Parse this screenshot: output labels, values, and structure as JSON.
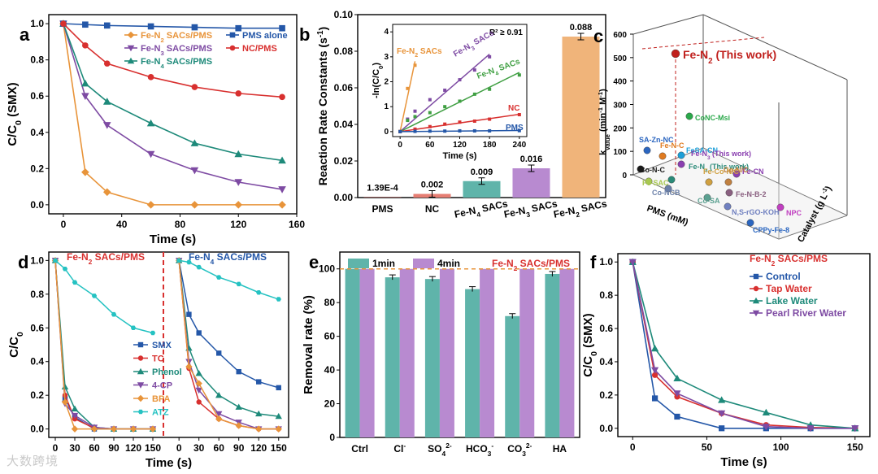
{
  "watermark": "大数跨境",
  "chart_data": [
    {
      "panel": "a",
      "type": "line",
      "xlabel": "Time (s)",
      "ylabel": "C/C0 (SMX)",
      "xlim": [
        -10,
        160
      ],
      "ylim": [
        -0.05,
        1.05
      ],
      "xticks": [
        0,
        40,
        80,
        120,
        160
      ],
      "yticks": [
        0.0,
        0.2,
        0.4,
        0.6,
        0.8,
        1.0
      ],
      "series": [
        {
          "name": "Fe-N2 SACs/PMS",
          "color": "#e8943a",
          "marker": "diamond",
          "x": [
            0,
            15,
            30,
            60,
            90,
            120,
            150
          ],
          "y": [
            1.0,
            0.18,
            0.07,
            0.0,
            0.0,
            0.0,
            0.0
          ]
        },
        {
          "name": "Fe-N3 SACs/PMS",
          "color": "#7e4ba3",
          "marker": "tri-down",
          "x": [
            0,
            15,
            30,
            60,
            90,
            120,
            150
          ],
          "y": [
            1.0,
            0.6,
            0.44,
            0.28,
            0.19,
            0.125,
            0.085
          ]
        },
        {
          "name": "Fe-N4 SACs/PMS",
          "color": "#1e8a7a",
          "marker": "tri-up",
          "x": [
            0,
            15,
            30,
            60,
            90,
            120,
            150
          ],
          "y": [
            1.0,
            0.67,
            0.57,
            0.45,
            0.34,
            0.28,
            0.245
          ]
        },
        {
          "name": "PMS alone",
          "color": "#2457a8",
          "marker": "square",
          "x": [
            0,
            15,
            30,
            60,
            90,
            120,
            150
          ],
          "y": [
            1.0,
            0.995,
            0.99,
            0.985,
            0.98,
            0.975,
            0.975
          ]
        },
        {
          "name": "NC/PMS",
          "color": "#d8302f",
          "marker": "circle",
          "x": [
            0,
            15,
            30,
            60,
            90,
            120,
            150
          ],
          "y": [
            1.0,
            0.88,
            0.78,
            0.705,
            0.65,
            0.615,
            0.595
          ]
        }
      ]
    },
    {
      "panel": "b",
      "type": "bar",
      "ylabel": "Reaction Rate Constants (s-1)",
      "ylim": [
        0,
        0.1
      ],
      "yticks": [
        0.0,
        0.02,
        0.04,
        0.06,
        0.08,
        0.1
      ],
      "categories": [
        "PMS",
        "NC",
        "Fe-N4 SACs",
        "Fe-N3 SACs",
        "Fe-N2 SACs"
      ],
      "values": [
        0.000139,
        0.002,
        0.009,
        0.016,
        0.088
      ],
      "value_labels": [
        "1.39E-4",
        "0.002",
        "0.009",
        "0.016",
        "0.088"
      ],
      "colors": [
        "#d8302f",
        "#e67e73",
        "#5fb4aa",
        "#b88ad0",
        "#f0b47a"
      ],
      "inset": {
        "xlabel": "Time (s)",
        "ylabel": "-ln(C/C0)",
        "annotation": "R² ≥ 0.91",
        "xlim": [
          -15,
          255
        ],
        "ylim": [
          -0.2,
          4.3
        ],
        "xticks": [
          0,
          60,
          120,
          180,
          240
        ],
        "yticks": [
          0,
          1,
          2,
          3,
          4
        ],
        "series": [
          {
            "name": "Fe-N2 SACs",
            "color": "#e8943a",
            "x": [
              0,
              15,
              30
            ],
            "y": [
              0,
              1.73,
              2.66
            ]
          },
          {
            "name": "Fe-N3 SACs",
            "color": "#7e4ba3",
            "x": [
              0,
              15,
              30,
              60,
              90,
              120,
              150,
              180
            ],
            "y": [
              0,
              0.5,
              0.82,
              1.28,
              1.66,
              2.08,
              2.47,
              3.0
            ]
          },
          {
            "name": "Fe-N4 SACs",
            "color": "#3f9f42",
            "x": [
              0,
              15,
              30,
              60,
              90,
              120,
              150,
              180,
              240
            ],
            "y": [
              0,
              0.45,
              0.6,
              0.76,
              1.0,
              1.22,
              1.5,
              1.7,
              2.27
            ]
          },
          {
            "name": "NC",
            "color": "#d8302f",
            "x": [
              0,
              30,
              60,
              90,
              120,
              150,
              180,
              240
            ],
            "y": [
              0,
              0.1,
              0.2,
              0.3,
              0.38,
              0.42,
              0.5,
              0.68
            ]
          },
          {
            "name": "PMS",
            "color": "#2457a8",
            "x": [
              0,
              30,
              60,
              90,
              120,
              150,
              180,
              240
            ],
            "y": [
              0,
              0.01,
              0.02,
              0.02,
              0.03,
              0.03,
              0.03,
              0.04
            ]
          }
        ]
      }
    },
    {
      "panel": "c",
      "type": "scatter",
      "xlabel": "PMS (mM)",
      "ylabel": "kvalue (min-1 M-1)",
      "zlabel": "Catalyst (g L-1)",
      "zticks": [
        0,
        100,
        200,
        300,
        400,
        500,
        600
      ],
      "points": [
        {
          "label": "Fe-N2 (This work)",
          "color": "#c0201d"
        },
        {
          "label": "CoNC-Msi",
          "color": "#2aa84a"
        },
        {
          "label": "SA-Zn-NC",
          "color": "#2b66c0"
        },
        {
          "label": "Fe-N-C",
          "color": "#e07b20"
        },
        {
          "label": "FeSA-CN",
          "color": "#1d9fd8"
        },
        {
          "label": "Co-N-C",
          "color": "#1a1a1a"
        },
        {
          "label": "Fe-N3 (This work)",
          "color": "#8a3fb0"
        },
        {
          "label": "Fe-N4 (This work)",
          "color": "#2a8a78"
        },
        {
          "label": "Fe-CN",
          "color": "#8a3fb0"
        },
        {
          "label": "Fe-SAC",
          "color": "#a8c850"
        },
        {
          "label": "Co-NCB",
          "color": "#6a7fa8"
        },
        {
          "label": "Fe-Co-N/C",
          "color": "#d0a040"
        },
        {
          "label": "Co-N/C",
          "color": "#c08040"
        },
        {
          "label": "Fe-N-B-2",
          "color": "#8a6080"
        },
        {
          "label": "Co-SA",
          "color": "#5aa090"
        },
        {
          "label": "N,S-rGO-KOH",
          "color": "#7080c0"
        },
        {
          "label": "CPPy-Fe-8",
          "color": "#2b66c0"
        },
        {
          "label": "NPC",
          "color": "#c040c0"
        }
      ]
    },
    {
      "panel": "d",
      "type": "line",
      "xlabel": "Time (s)",
      "ylabel": "C/C0",
      "ylim": [
        -0.05,
        1.05
      ],
      "yticks": [
        0.0,
        0.2,
        0.4,
        0.6,
        0.8,
        1.0
      ],
      "sub_titles": [
        "Fe-N2 SACs/PMS",
        "Fe-N4 SACs/PMS"
      ],
      "xticks": [
        0,
        30,
        60,
        90,
        120,
        150
      ],
      "series": [
        {
          "name": "SMX",
          "color": "#2457a8",
          "marker": "square",
          "left": [
            1.0,
            0.18,
            0.07,
            0.0,
            0.0,
            0.0,
            0.0
          ],
          "right": [
            1.0,
            0.68,
            0.57,
            0.45,
            0.34,
            0.28,
            0.245
          ]
        },
        {
          "name": "TC",
          "color": "#d8302f",
          "marker": "circle",
          "left": [
            1.0,
            0.2,
            0.06,
            0.005,
            0.0,
            0.0,
            0.0
          ],
          "right": [
            1.0,
            0.36,
            0.16,
            0.06,
            0.02,
            0.0,
            0.0
          ]
        },
        {
          "name": "Phenol",
          "color": "#1e8a7a",
          "marker": "tri-up",
          "left": [
            1.0,
            0.25,
            0.12,
            0.01,
            0.0,
            0.0,
            0.0
          ],
          "right": [
            1.0,
            0.48,
            0.33,
            0.2,
            0.13,
            0.09,
            0.075
          ]
        },
        {
          "name": "4-CP",
          "color": "#7e4ba3",
          "marker": "tri-down",
          "left": [
            1.0,
            0.15,
            0.08,
            0.01,
            0.0,
            0.0,
            0.0
          ],
          "right": [
            1.0,
            0.4,
            0.23,
            0.09,
            0.04,
            0.0,
            0.0
          ]
        },
        {
          "name": "BPA",
          "color": "#e8943a",
          "marker": "diamond",
          "left": [
            1.0,
            0.16,
            0.0,
            0.0,
            0.0,
            0.0,
            0.0
          ],
          "right": [
            1.0,
            0.37,
            0.27,
            0.06,
            0.02,
            0.0,
            0.0
          ]
        },
        {
          "name": "ATZ",
          "color": "#25c2c2",
          "marker": "hexagon",
          "left": [
            1.0,
            0.95,
            0.87,
            0.79,
            0.68,
            0.6,
            0.57
          ],
          "right": [
            1.0,
            0.99,
            0.96,
            0.9,
            0.86,
            0.81,
            0.77
          ]
        }
      ],
      "x": [
        0,
        15,
        30,
        60,
        90,
        120,
        150
      ]
    },
    {
      "panel": "e",
      "type": "bar",
      "ylabel": "Removal rate (%)",
      "title": "Fe-N2 SACs/PMS",
      "ylim": [
        0,
        110
      ],
      "yticks": [
        0,
        20,
        40,
        60,
        80,
        100
      ],
      "categories": [
        "Ctrl",
        "Cl-",
        "SO42-",
        "HCO3-",
        "CO32-",
        "HA"
      ],
      "series": [
        {
          "name": "1min",
          "color": "#5fb4aa",
          "values": [
            100,
            95,
            94,
            88,
            72,
            97
          ]
        },
        {
          "name": "4min",
          "color": "#b88ad0",
          "values": [
            100,
            100,
            100,
            100,
            100,
            100
          ]
        }
      ],
      "reference_line": 100
    },
    {
      "panel": "f",
      "type": "line",
      "xlabel": "Time (s)",
      "ylabel": "C/C0 (SMX)",
      "title": "Fe-N2 SACs/PMS",
      "xlim": [
        -10,
        160
      ],
      "ylim": [
        -0.05,
        1.05
      ],
      "xticks": [
        0,
        50,
        100,
        150
      ],
      "yticks": [
        0.0,
        0.2,
        0.4,
        0.6,
        0.8,
        1.0
      ],
      "series": [
        {
          "name": "Control",
          "color": "#2457a8",
          "marker": "square",
          "x": [
            0,
            15,
            30,
            60,
            90,
            120,
            150
          ],
          "y": [
            1.0,
            0.18,
            0.07,
            0.0,
            0.0,
            0.0,
            0.0
          ]
        },
        {
          "name": "Tap Water",
          "color": "#d8302f",
          "marker": "circle",
          "x": [
            0,
            15,
            30,
            60,
            90,
            120,
            150
          ],
          "y": [
            1.0,
            0.32,
            0.19,
            0.09,
            0.02,
            0.005,
            0.0
          ]
        },
        {
          "name": "Lake Water",
          "color": "#1e8a7a",
          "marker": "tri-up",
          "x": [
            0,
            15,
            30,
            60,
            90,
            120,
            150
          ],
          "y": [
            1.0,
            0.48,
            0.3,
            0.17,
            0.095,
            0.02,
            0.0
          ]
        },
        {
          "name": "Pearl River Water",
          "color": "#7e4ba3",
          "marker": "tri-down",
          "x": [
            0,
            15,
            30,
            60,
            90,
            120,
            150
          ],
          "y": [
            1.0,
            0.35,
            0.21,
            0.09,
            0.01,
            0.0,
            0.0
          ]
        }
      ]
    }
  ]
}
